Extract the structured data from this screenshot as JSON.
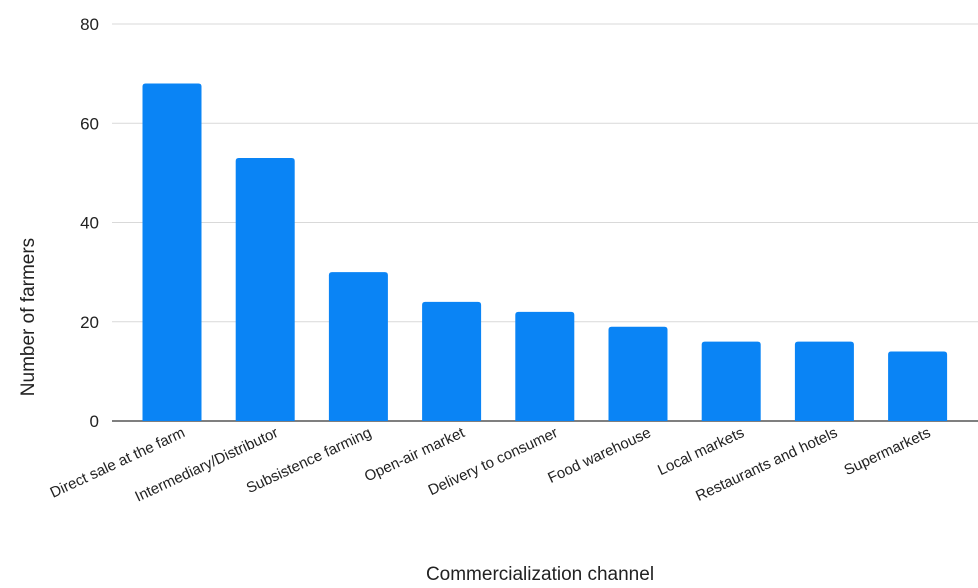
{
  "chart_data": {
    "type": "bar",
    "categories": [
      "Direct sale at the farm",
      "Intermediary/Distributor",
      "Subsistence farming",
      "Open-air market",
      "Delivery to consumer",
      "Food warehouse",
      "Local markets",
      "Restaurants and hotels",
      "Supermarkets"
    ],
    "values": [
      68,
      53,
      30,
      24,
      22,
      19,
      16,
      16,
      14
    ],
    "title": "",
    "xlabel": "Commercialization channel",
    "ylabel": "Number of farmers",
    "ylim": [
      0,
      80
    ],
    "yticks": [
      "0",
      "20",
      "40",
      "60",
      "80"
    ],
    "grid": true,
    "legend": "none",
    "bar_color": "#0a84f5"
  }
}
